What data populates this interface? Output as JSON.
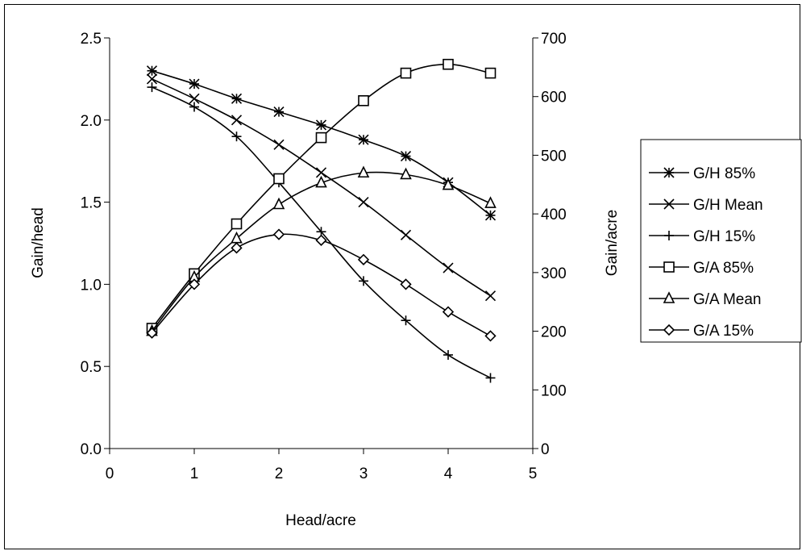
{
  "chart_data": {
    "type": "line",
    "xlabel": "Head/acre",
    "ylabel": "Gain/head",
    "y2label": "Gain/acre",
    "xlim": [
      0,
      5
    ],
    "ylim": [
      0,
      2.5
    ],
    "y2lim": [
      0,
      700
    ],
    "xticks": [
      "0",
      "1",
      "2",
      "3",
      "4",
      "5"
    ],
    "yticks": [
      "0.0",
      "0.5",
      "1.0",
      "1.5",
      "2.0",
      "2.5"
    ],
    "y2ticks": [
      "0",
      "100",
      "200",
      "300",
      "400",
      "500",
      "600",
      "700"
    ],
    "grid": false,
    "legend_position": "right",
    "x": [
      0.5,
      1,
      1.5,
      2,
      2.5,
      3,
      3.5,
      4,
      4.5
    ],
    "series": [
      {
        "name": "G/H 85%",
        "axis": "left",
        "marker": "asterisk",
        "values": [
          2.3,
          2.22,
          2.13,
          2.05,
          1.97,
          1.88,
          1.78,
          1.62,
          1.42
        ]
      },
      {
        "name": "G/H Mean",
        "axis": "left",
        "marker": "x",
        "values": [
          2.25,
          2.13,
          2.0,
          1.85,
          1.68,
          1.5,
          1.3,
          1.1,
          0.93
        ]
      },
      {
        "name": "G/H 15%",
        "axis": "left",
        "marker": "plus",
        "values": [
          2.2,
          2.08,
          1.9,
          1.62,
          1.32,
          1.02,
          0.78,
          0.57,
          0.43
        ]
      },
      {
        "name": "G/A 85%",
        "axis": "right",
        "marker": "square",
        "values": [
          205,
          298,
          383,
          460,
          530,
          593,
          640,
          655,
          640
        ]
      },
      {
        "name": "G/A Mean",
        "axis": "right",
        "marker": "triangle",
        "values": [
          200,
          292,
          358,
          416,
          453,
          470,
          467,
          449,
          418
        ]
      },
      {
        "name": "G/A 15%",
        "axis": "right",
        "marker": "diamond",
        "values": [
          197,
          280,
          342,
          365,
          355,
          322,
          280,
          233,
          192
        ]
      }
    ]
  }
}
